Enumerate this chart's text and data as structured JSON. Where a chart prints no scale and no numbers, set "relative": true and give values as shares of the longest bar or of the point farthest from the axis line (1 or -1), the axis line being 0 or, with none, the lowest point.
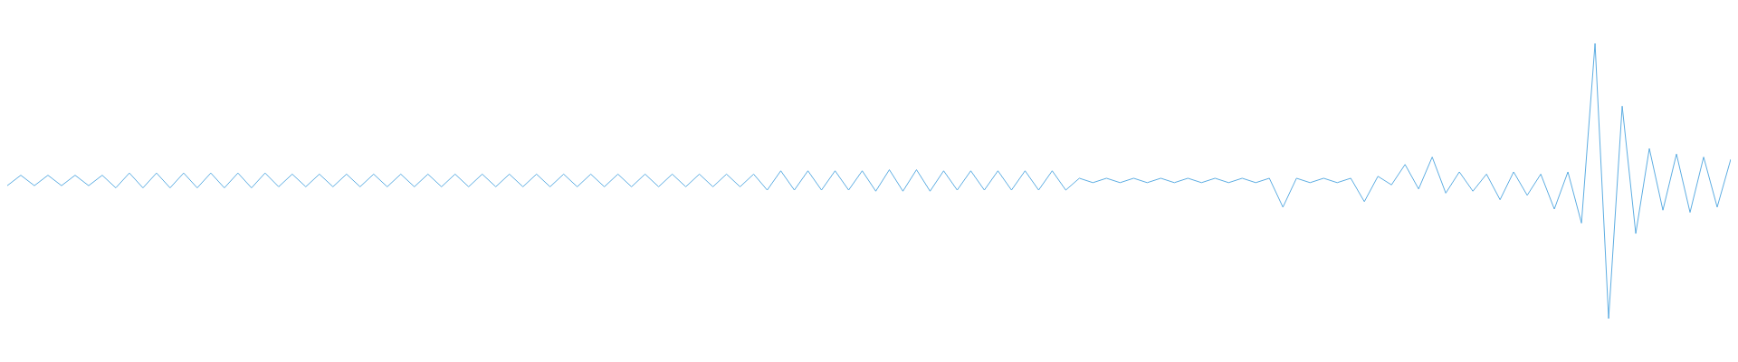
{
  "chart_data": {
    "type": "line",
    "relative": true,
    "grid": false,
    "categories": [
      null,
      null,
      null,
      null,
      null,
      null,
      null,
      null,
      null,
      null,
      null,
      null,
      null,
      null,
      null,
      null,
      null,
      null,
      null,
      null,
      null,
      null,
      null,
      null,
      null,
      null,
      null,
      null,
      null,
      null,
      null,
      null,
      null,
      null,
      null,
      null,
      null,
      null,
      null,
      null,
      null,
      null,
      null,
      null,
      null,
      null,
      null,
      null,
      null,
      null,
      null,
      null,
      null,
      null,
      null,
      null,
      null,
      null,
      null,
      null,
      null,
      null,
      null,
      null,
      null,
      null,
      null,
      null,
      null,
      null,
      null,
      null,
      null,
      null,
      null,
      null,
      null,
      null,
      null,
      null,
      null,
      null,
      null,
      null,
      null,
      null,
      null,
      null,
      null,
      null,
      null,
      null,
      null,
      null,
      null,
      null,
      null,
      null,
      null,
      null,
      null,
      null,
      null,
      null,
      null,
      null,
      null,
      null,
      null,
      null,
      null,
      null,
      null,
      null,
      null,
      null,
      null,
      null,
      null,
      null,
      null,
      null,
      null,
      null,
      null,
      null,
      null,
      null
    ],
    "series": [
      {
        "color": "#5dade2",
        "values": [
          0.483,
          0.521,
          0.483,
          0.521,
          0.483,
          0.521,
          0.483,
          0.521,
          0.475,
          0.529,
          0.475,
          0.529,
          0.475,
          0.529,
          0.475,
          0.529,
          0.475,
          0.529,
          0.475,
          0.529,
          0.479,
          0.525,
          0.479,
          0.525,
          0.479,
          0.525,
          0.479,
          0.525,
          0.479,
          0.525,
          0.479,
          0.525,
          0.479,
          0.525,
          0.479,
          0.525,
          0.479,
          0.525,
          0.479,
          0.525,
          0.479,
          0.525,
          0.479,
          0.525,
          0.479,
          0.525,
          0.479,
          0.525,
          0.479,
          0.525,
          0.479,
          0.525,
          0.479,
          0.525,
          0.479,
          0.525,
          0.467,
          0.537,
          0.467,
          0.537,
          0.467,
          0.537,
          0.467,
          0.537,
          0.463,
          0.541,
          0.463,
          0.541,
          0.463,
          0.537,
          0.467,
          0.537,
          0.467,
          0.537,
          0.467,
          0.537,
          0.467,
          0.537,
          0.467,
          0.51,
          0.494,
          0.51,
          0.494,
          0.51,
          0.494,
          0.51,
          0.494,
          0.51,
          0.494,
          0.51,
          0.494,
          0.51,
          0.494,
          0.51,
          0.405,
          0.51,
          0.494,
          0.51,
          0.494,
          0.51,
          0.425,
          0.517,
          0.486,
          0.56,
          0.471,
          0.587,
          0.456,
          0.533,
          0.463,
          0.525,
          0.432,
          0.533,
          0.448,
          0.525,
          0.398,
          0.533,
          0.347,
          1.0,
          0,
          0.772,
          0.309,
          0.618,
          0.394,
          0.598,
          0.386,
          0.587,
          0.405,
          0.579
        ]
      }
    ]
  }
}
